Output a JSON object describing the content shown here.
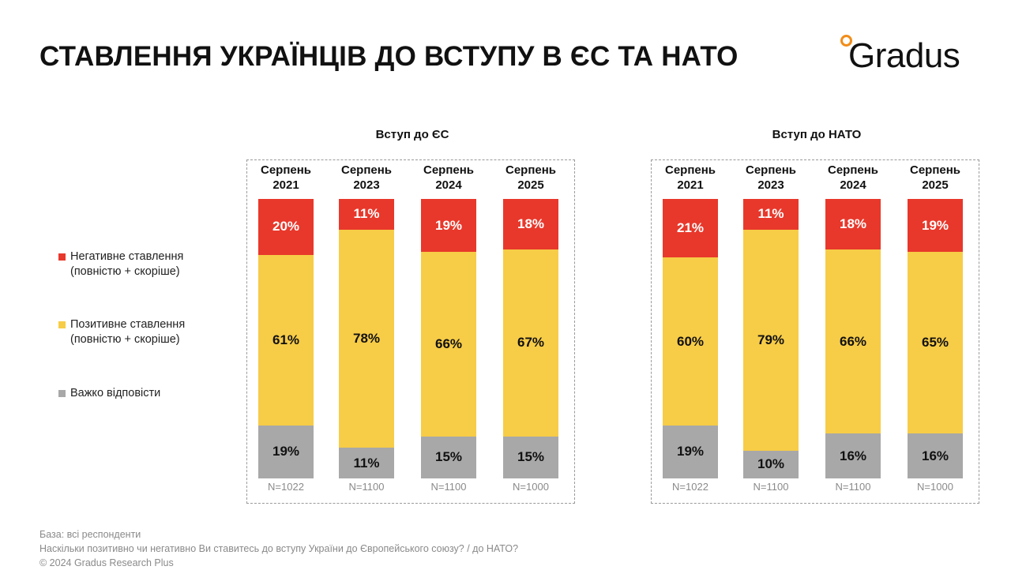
{
  "title": "СТАВЛЕННЯ УКРАЇНЦІВ ДО ВСТУПУ В ЄС ТА НАТО",
  "logo_text": "Gradus",
  "colors": {
    "negative": "#e8382b",
    "positive": "#f7cc47",
    "hard": "#a8a8a8",
    "accent": "#f28c18"
  },
  "legend": [
    {
      "line1": "Негативне ставлення",
      "line2": "(повністю + скоріше)",
      "color": "#e8382b"
    },
    {
      "line1": "Позитивне ставлення",
      "line2": "(повністю + скоріше)",
      "color": "#f7cc47"
    },
    {
      "line1": "Важко відповісти",
      "line2": "",
      "color": "#a8a8a8"
    }
  ],
  "chart_data": [
    {
      "type": "bar",
      "stacked": true,
      "title": "Вступ до ЄС",
      "categories": [
        {
          "line1": "Серпень",
          "line2": "2021"
        },
        {
          "line1": "Серпень",
          "line2": "2023"
        },
        {
          "line1": "Серпень",
          "line2": "2024"
        },
        {
          "line1": "Серпень",
          "line2": "2025"
        }
      ],
      "series": [
        {
          "name": "Негативне ставлення (повністю + скоріше)",
          "values": [
            20,
            11,
            19,
            18
          ],
          "labels": [
            "20%",
            "11%",
            "19%",
            "18%"
          ]
        },
        {
          "name": "Позитивне ставлення (повністю + скоріше)",
          "values": [
            61,
            78,
            66,
            67
          ],
          "labels": [
            "61%",
            "78%",
            "66%",
            "67%"
          ]
        },
        {
          "name": "Важко відповісти",
          "values": [
            19,
            11,
            15,
            15
          ],
          "labels": [
            "19%",
            "11%",
            "15%",
            "15%"
          ]
        }
      ],
      "n": [
        "N=1022",
        "N=1100",
        "N=1100",
        "N=1000"
      ],
      "ylim": [
        0,
        100
      ]
    },
    {
      "type": "bar",
      "stacked": true,
      "title": "Вступ до НАТО",
      "categories": [
        {
          "line1": "Серпень",
          "line2": "2021"
        },
        {
          "line1": "Серпень",
          "line2": "2023"
        },
        {
          "line1": "Серпень",
          "line2": "2024"
        },
        {
          "line1": "Серпень",
          "line2": "2025"
        }
      ],
      "series": [
        {
          "name": "Негативне ставлення (повністю + скоріше)",
          "values": [
            21,
            11,
            18,
            19
          ],
          "labels": [
            "21%",
            "11%",
            "18%",
            "19%"
          ]
        },
        {
          "name": "Позитивне ставлення (повністю + скоріше)",
          "values": [
            60,
            79,
            66,
            65
          ],
          "labels": [
            "60%",
            "79%",
            "66%",
            "65%"
          ]
        },
        {
          "name": "Важко відповісти",
          "values": [
            19,
            10,
            16,
            16
          ],
          "labels": [
            "19%",
            "10%",
            "16%",
            "16%"
          ]
        }
      ],
      "n": [
        "N=1022",
        "N=1100",
        "N=1100",
        "N=1000"
      ],
      "ylim": [
        0,
        100
      ]
    }
  ],
  "footer": {
    "base": "База: всі респонденти",
    "question": "Наскільки позитивно чи негативно Ви ставитесь до вступу України до Європейського союзу? / до НАТО?",
    "copyright": "© 2024 Gradus Research Plus"
  }
}
